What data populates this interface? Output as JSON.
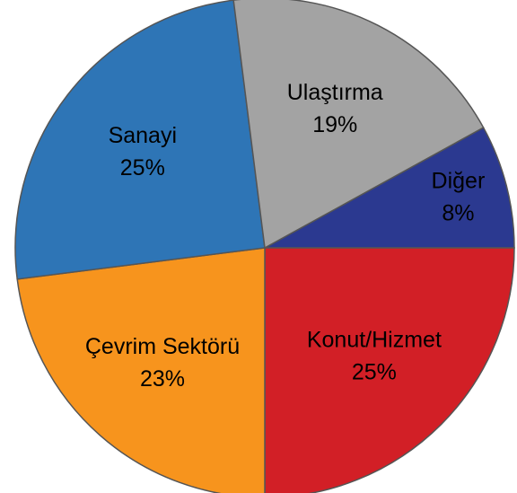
{
  "chart_data": {
    "type": "pie",
    "categories": [
      "Diğer",
      "Konut/Hizmet",
      "Çevrim Sektörü",
      "Sanayi",
      "Ulaştırma"
    ],
    "values": [
      8,
      25,
      23,
      25,
      19
    ],
    "value_labels": [
      "8%",
      "25%",
      "23%",
      "25%",
      "19%"
    ],
    "colors": [
      "#2b3990",
      "#d21f26",
      "#f7941d",
      "#2e75b6",
      "#a3a3a3"
    ]
  }
}
